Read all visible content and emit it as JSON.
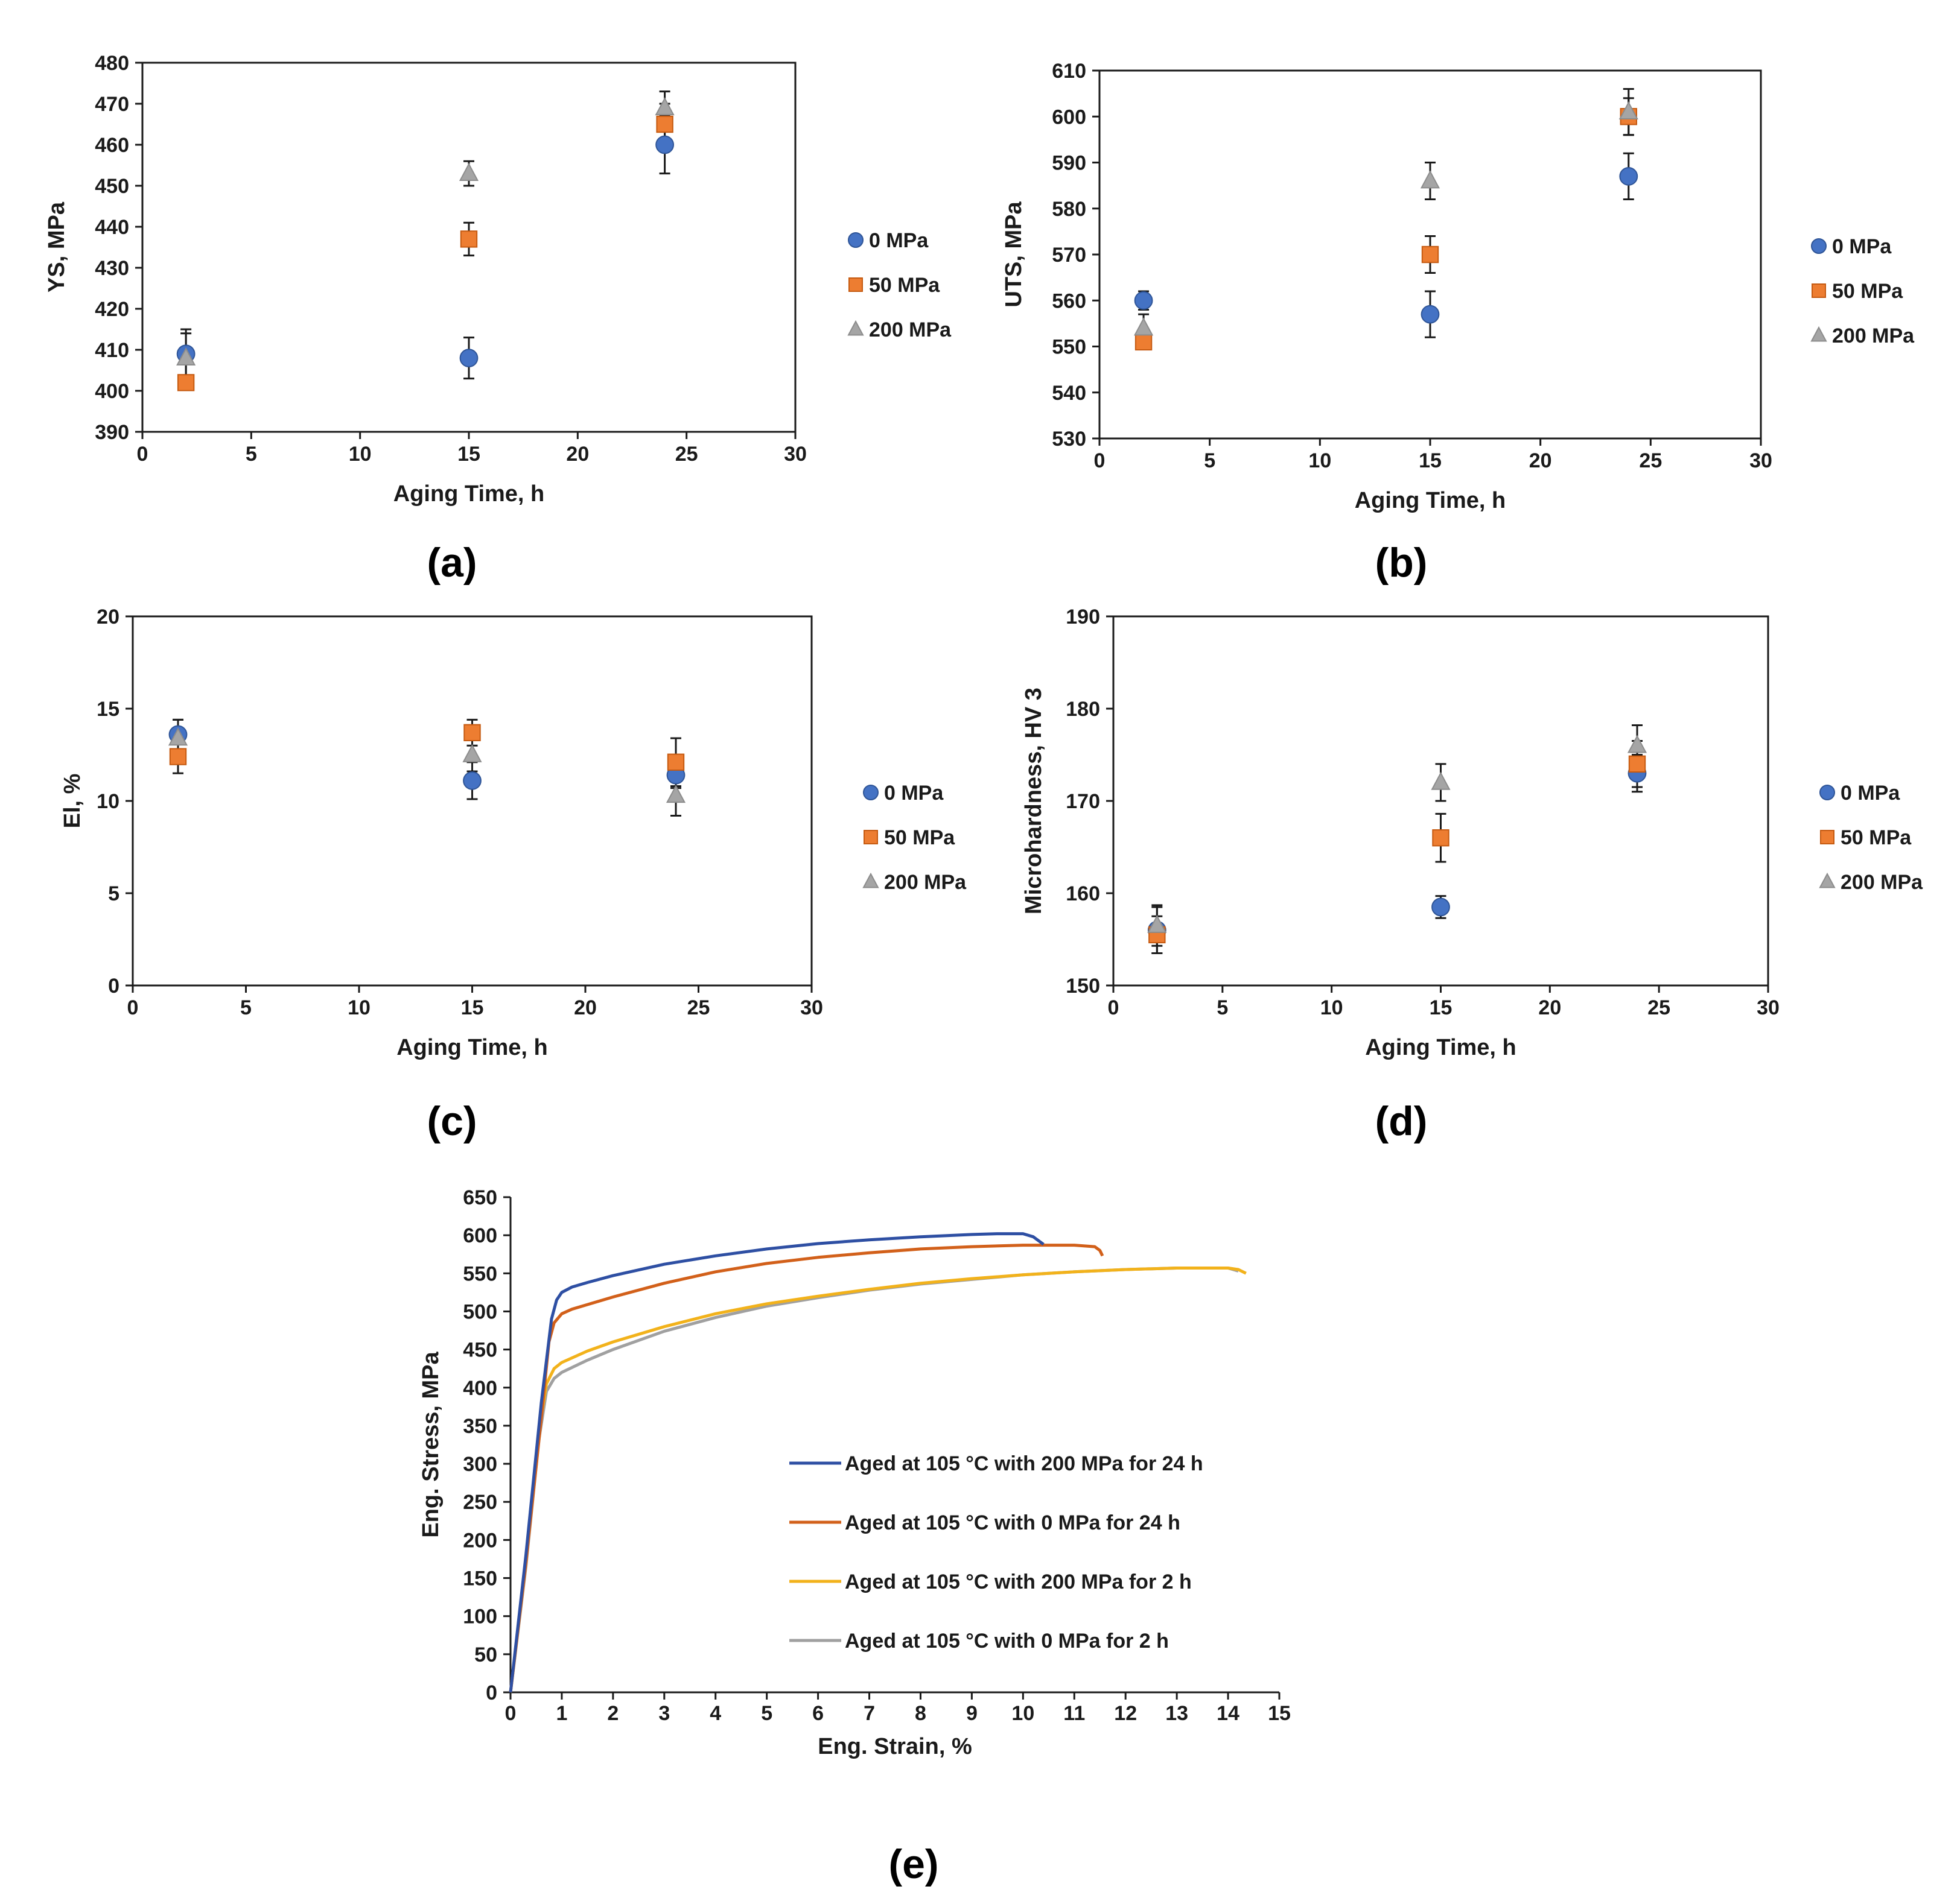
{
  "figure": {
    "panel_labels": [
      "(a)",
      "(b)",
      "(c)",
      "(d)",
      "(e)"
    ]
  },
  "colors": {
    "0 MPa": "#4472C4",
    "50 MPa": "#ED7D31",
    "200 MPa": "#A5A5A5",
    "curve_200_24": "#2E4FA3",
    "curve_0_24": "#D2601A",
    "curve_200_2": "#F2B21B",
    "curve_0_2": "#A0A0A0"
  },
  "chart_data": [
    {
      "id": "a",
      "type": "scatter",
      "panel_label": "(a)",
      "xlabel": "Aging Time, h",
      "ylabel": "YS, MPa",
      "xlim": [
        0,
        30
      ],
      "ylim": [
        390,
        480
      ],
      "xticks": [
        0,
        5,
        10,
        15,
        20,
        25,
        30
      ],
      "yticks": [
        390,
        400,
        410,
        420,
        430,
        440,
        450,
        460,
        470,
        480
      ],
      "legend": [
        "0 MPa",
        "50 MPa",
        "200 MPa"
      ],
      "legend_position": "right",
      "series": [
        {
          "name": "0 MPa",
          "marker": "circle",
          "x": [
            2,
            15,
            24
          ],
          "y": [
            409,
            408,
            460
          ],
          "err": [
            6,
            5,
            7
          ]
        },
        {
          "name": "50 MPa",
          "marker": "square",
          "x": [
            2,
            15,
            24
          ],
          "y": [
            402,
            437,
            465
          ],
          "err": [
            0,
            4,
            5
          ]
        },
        {
          "name": "200 MPa",
          "marker": "triangle",
          "x": [
            2,
            15,
            24
          ],
          "y": [
            408,
            453,
            469
          ],
          "err": [
            6,
            3,
            4
          ]
        }
      ]
    },
    {
      "id": "b",
      "type": "scatter",
      "panel_label": "(b)",
      "xlabel": "Aging Time, h",
      "ylabel": "UTS, MPa",
      "xlim": [
        0,
        30
      ],
      "ylim": [
        530,
        610
      ],
      "xticks": [
        0,
        5,
        10,
        15,
        20,
        25,
        30
      ],
      "yticks": [
        530,
        540,
        550,
        560,
        570,
        580,
        590,
        600,
        610
      ],
      "legend": [
        "0 MPa",
        "50 MPa",
        "200 MPa"
      ],
      "legend_position": "right",
      "series": [
        {
          "name": "0 MPa",
          "marker": "circle",
          "x": [
            2,
            15,
            24
          ],
          "y": [
            560,
            557,
            587
          ],
          "err": [
            2,
            5,
            5
          ]
        },
        {
          "name": "50 MPa",
          "marker": "square",
          "x": [
            2,
            15,
            24
          ],
          "y": [
            551,
            570,
            600
          ],
          "err": [
            0,
            4,
            4
          ]
        },
        {
          "name": "200 MPa",
          "marker": "triangle",
          "x": [
            2,
            15,
            24
          ],
          "y": [
            554,
            586,
            601
          ],
          "err": [
            3,
            4,
            5
          ]
        }
      ]
    },
    {
      "id": "c",
      "type": "scatter",
      "panel_label": "(c)",
      "xlabel": "Aging Time, h",
      "ylabel": "El, %",
      "xlim": [
        0,
        30
      ],
      "ylim": [
        0,
        20
      ],
      "xticks": [
        0,
        5,
        10,
        15,
        20,
        25,
        30
      ],
      "yticks": [
        0,
        5,
        10,
        15,
        20
      ],
      "legend": [
        "0 MPa",
        "50 MPa",
        "200 MPa"
      ],
      "legend_position": "right",
      "series": [
        {
          "name": "0 MPa",
          "marker": "circle",
          "x": [
            2,
            15,
            24
          ],
          "y": [
            13.6,
            11.1,
            11.4
          ],
          "err": [
            0.8,
            1.0,
            0.7
          ]
        },
        {
          "name": "50 MPa",
          "marker": "square",
          "x": [
            2,
            15,
            24
          ],
          "y": [
            12.4,
            13.7,
            12.1
          ],
          "err": [
            0.9,
            0.7,
            1.3
          ]
        },
        {
          "name": "200 MPa",
          "marker": "triangle",
          "x": [
            2,
            15,
            24
          ],
          "y": [
            13.4,
            12.5,
            10.3
          ],
          "err": [
            1.0,
            0.9,
            1.1
          ]
        }
      ]
    },
    {
      "id": "d",
      "type": "scatter",
      "panel_label": "(d)",
      "xlabel": "Aging Time, h",
      "ylabel": "Microhardness, HV 3",
      "xlim": [
        0,
        30
      ],
      "ylim": [
        150,
        190
      ],
      "xticks": [
        0,
        5,
        10,
        15,
        20,
        25,
        30
      ],
      "yticks": [
        150,
        160,
        170,
        180,
        190
      ],
      "legend": [
        "0 MPa",
        "50 MPa",
        "200 MPa"
      ],
      "legend_position": "right",
      "series": [
        {
          "name": "0 MPa",
          "marker": "circle",
          "x": [
            2,
            15,
            24
          ],
          "y": [
            156,
            158.5,
            173
          ],
          "err": [
            2.5,
            1.2,
            2
          ]
        },
        {
          "name": "50 MPa",
          "marker": "square",
          "x": [
            2,
            15,
            24
          ],
          "y": [
            155.5,
            166,
            174
          ],
          "err": [
            2,
            2.6,
            2.5
          ]
        },
        {
          "name": "200 MPa",
          "marker": "triangle",
          "x": [
            2,
            15,
            24
          ],
          "y": [
            156.5,
            172,
            176
          ],
          "err": [
            2.2,
            2,
            2.2
          ]
        }
      ]
    },
    {
      "id": "e",
      "type": "line",
      "panel_label": "(e)",
      "xlabel": "Eng. Strain, %",
      "ylabel": "Eng. Stress, MPa",
      "xlim": [
        0,
        15
      ],
      "ylim": [
        0,
        650
      ],
      "xticks": [
        0,
        1,
        2,
        3,
        4,
        5,
        6,
        7,
        8,
        9,
        10,
        11,
        12,
        13,
        14,
        15
      ],
      "yticks": [
        0,
        50,
        100,
        150,
        200,
        250,
        300,
        350,
        400,
        450,
        500,
        550,
        600,
        650
      ],
      "legend_position": "center",
      "series": [
        {
          "name": "Aged at 105 °C with 200 MPa for 24 h",
          "color_key": "curve_200_24",
          "x": [
            0,
            0.3,
            0.6,
            0.8,
            0.9,
            1.0,
            1.2,
            1.5,
            2,
            3,
            4,
            5,
            6,
            7,
            8,
            9,
            9.5,
            10,
            10.2,
            10.4
          ],
          "y": [
            0,
            180,
            380,
            490,
            515,
            525,
            532,
            538,
            547,
            562,
            573,
            582,
            589,
            594,
            598,
            601,
            602,
            602,
            598,
            588
          ]
        },
        {
          "name": "Aged at 105 °C with 0 MPa for 24 h",
          "color_key": "curve_0_24",
          "x": [
            0,
            0.3,
            0.6,
            0.75,
            0.85,
            1.0,
            1.2,
            1.5,
            2,
            3,
            4,
            5,
            6,
            7,
            8,
            9,
            10,
            11,
            11.4,
            11.5,
            11.55
          ],
          "y": [
            0,
            170,
            360,
            460,
            485,
            497,
            503,
            509,
            519,
            537,
            552,
            563,
            571,
            577,
            582,
            585,
            587,
            587,
            585,
            580,
            573
          ]
        },
        {
          "name": "Aged at 105 °C with 200 MPa for 2 h",
          "color_key": "curve_200_2",
          "x": [
            0,
            0.3,
            0.55,
            0.7,
            0.85,
            1,
            1.5,
            2,
            3,
            4,
            5,
            6,
            7,
            8,
            9,
            10,
            11,
            12,
            13,
            14,
            14.2,
            14.35
          ],
          "y": [
            0,
            170,
            340,
            405,
            425,
            433,
            448,
            460,
            480,
            497,
            510,
            520,
            529,
            537,
            543,
            548,
            552,
            555,
            557,
            557,
            555,
            550
          ]
        },
        {
          "name": "Aged at 105 °C with 0 MPa for 2 h",
          "color_key": "curve_0_2",
          "x": [
            0,
            0.3,
            0.55,
            0.7,
            0.85,
            1,
            1.5,
            2,
            3,
            4,
            5,
            6,
            7,
            8,
            9,
            10,
            11,
            12,
            13,
            14,
            14.2
          ],
          "y": [
            0,
            165,
            330,
            395,
            412,
            420,
            436,
            450,
            474,
            492,
            507,
            518,
            528,
            536,
            542,
            548,
            552,
            555,
            557,
            557,
            553
          ]
        }
      ]
    }
  ]
}
